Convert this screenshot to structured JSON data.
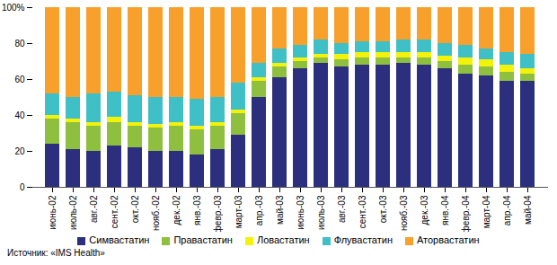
{
  "chart_data": {
    "type": "bar",
    "stacked": true,
    "caption": "Источник: «IMS Health»",
    "categories": [
      "июнь-02",
      "июль-02",
      "авг.-02",
      "сент.-02",
      "окт.-02",
      "нояб.-02",
      "дек.-02",
      "янв.-03",
      "февр.-03",
      "март-03",
      "апр.-03",
      "май-03",
      "июнь-03",
      "июль-03",
      "авг.-03",
      "сент.-03",
      "окт.-03",
      "нояб.-03",
      "дек.-03",
      "янв.-04",
      "февр.-04",
      "март-04",
      "апр.-04",
      "май-04"
    ],
    "series": [
      {
        "name": "Симвастатин",
        "color": "#2b2f7e",
        "values": [
          24,
          21,
          20,
          23,
          22,
          20,
          20,
          18,
          21,
          29,
          50,
          61,
          66,
          69,
          67,
          68,
          68,
          69,
          68,
          66,
          63,
          62,
          59,
          59
        ]
      },
      {
        "name": "Правастатин",
        "color": "#8fbf3f",
        "values": [
          14,
          15,
          14,
          13,
          12,
          13,
          14,
          14,
          13,
          12,
          9,
          6,
          4,
          3,
          4,
          4,
          4,
          3,
          4,
          4,
          5,
          5,
          5,
          4
        ]
      },
      {
        "name": "Ловастатин",
        "color": "#f2f20a",
        "values": [
          2,
          2,
          2,
          3,
          2,
          2,
          2,
          2,
          2,
          2,
          2,
          2,
          2,
          2,
          3,
          3,
          3,
          3,
          3,
          3,
          4,
          4,
          4,
          3
        ]
      },
      {
        "name": "Флувастатин",
        "color": "#3fbfc6",
        "values": [
          12,
          12,
          16,
          14,
          15,
          15,
          14,
          15,
          14,
          15,
          8,
          8,
          7,
          8,
          6,
          6,
          6,
          7,
          7,
          7,
          7,
          6,
          7,
          8
        ]
      },
      {
        "name": "Аторвастатин",
        "color": "#f7a02b",
        "values": [
          48,
          50,
          48,
          47,
          49,
          50,
          50,
          51,
          50,
          42,
          31,
          23,
          21,
          18,
          20,
          19,
          19,
          18,
          18,
          20,
          21,
          23,
          25,
          26
        ]
      }
    ],
    "ylim": [
      0,
      100
    ],
    "yticks": [
      0,
      20,
      40,
      60,
      80,
      {
        "value": 100,
        "label": "100%"
      }
    ],
    "grid": false,
    "legend": "bottom"
  }
}
